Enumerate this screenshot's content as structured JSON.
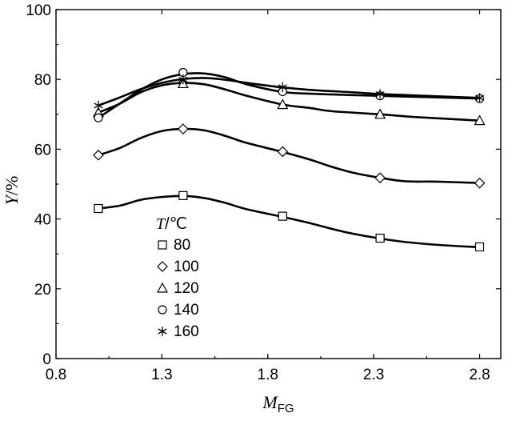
{
  "chart_data": {
    "type": "line",
    "xlabel": {
      "main": "M",
      "sub": "FG"
    },
    "ylabel": {
      "main": "Y",
      "suffix": "/%"
    },
    "xlim": [
      0.8,
      2.9
    ],
    "ylim": [
      0,
      100
    ],
    "x_ticks": [
      "0.8",
      "1.3",
      "1.8",
      "2.3",
      "2.8"
    ],
    "y_ticks": [
      "0",
      "20",
      "40",
      "60",
      "80",
      "100"
    ],
    "legend": {
      "title_main": "T",
      "title_suffix": "/℃",
      "placement": "lower-left"
    },
    "x": [
      1.0,
      1.4,
      1.87,
      2.33,
      2.8
    ],
    "series": [
      {
        "name": "80",
        "marker": "square",
        "values": [
          43,
          46.7,
          40.8,
          34.5,
          32.0
        ],
        "curve": [
          [
            1.0,
            43
          ],
          [
            1.1,
            43.8
          ],
          [
            1.2,
            45.5
          ],
          [
            1.3,
            46.3
          ],
          [
            1.4,
            46.6
          ],
          [
            1.5,
            46
          ],
          [
            1.6,
            44.6
          ],
          [
            1.7,
            42.8
          ],
          [
            1.87,
            40.6
          ],
          [
            2.0,
            38.8
          ],
          [
            2.1,
            37.2
          ],
          [
            2.2,
            35.8
          ],
          [
            2.33,
            34.4
          ],
          [
            2.45,
            33.4
          ],
          [
            2.6,
            32.6
          ],
          [
            2.8,
            31.9
          ]
        ]
      },
      {
        "name": "100",
        "marker": "diamond",
        "values": [
          58.3,
          65.8,
          59.3,
          51.8,
          50.3
        ],
        "curve": [
          [
            1.0,
            58.3
          ],
          [
            1.1,
            60.3
          ],
          [
            1.2,
            63.2
          ],
          [
            1.3,
            65.2
          ],
          [
            1.4,
            65.8
          ],
          [
            1.5,
            65.4
          ],
          [
            1.6,
            63.8
          ],
          [
            1.7,
            61.8
          ],
          [
            1.87,
            59.2
          ],
          [
            2.0,
            57
          ],
          [
            2.1,
            55
          ],
          [
            2.2,
            53.3
          ],
          [
            2.33,
            51.8
          ],
          [
            2.45,
            50.8
          ],
          [
            2.6,
            50.7
          ],
          [
            2.8,
            50.3
          ]
        ]
      },
      {
        "name": "120",
        "marker": "triangle",
        "values": [
          70.5,
          78.8,
          72.8,
          70.0,
          68.2
        ],
        "curve": [
          [
            1.0,
            70.5
          ],
          [
            1.1,
            73
          ],
          [
            1.2,
            76.3
          ],
          [
            1.3,
            78.3
          ],
          [
            1.4,
            79
          ],
          [
            1.5,
            78.6
          ],
          [
            1.6,
            77.1
          ],
          [
            1.7,
            75.3
          ],
          [
            1.87,
            72.8
          ],
          [
            2.0,
            71.8
          ],
          [
            2.1,
            70.9
          ],
          [
            2.33,
            70
          ],
          [
            2.5,
            69.2
          ],
          [
            2.8,
            68.2
          ]
        ]
      },
      {
        "name": "140",
        "marker": "circle",
        "values": [
          69.0,
          82.0,
          76.5,
          75.3,
          74.5
        ],
        "curve": [
          [
            1.0,
            69
          ],
          [
            1.1,
            73
          ],
          [
            1.2,
            77
          ],
          [
            1.3,
            80
          ],
          [
            1.4,
            81.5
          ],
          [
            1.5,
            81.7
          ],
          [
            1.6,
            80.6
          ],
          [
            1.7,
            78.6
          ],
          [
            1.87,
            76.4
          ],
          [
            2.0,
            75.9
          ],
          [
            2.2,
            75.5
          ],
          [
            2.33,
            75.3
          ],
          [
            2.5,
            75
          ],
          [
            2.8,
            74.5
          ]
        ]
      },
      {
        "name": "160",
        "marker": "star",
        "values": [
          72.5,
          80.0,
          77.8,
          75.8,
          74.7
        ],
        "curve": [
          [
            1.0,
            72.5
          ],
          [
            1.1,
            74.8
          ],
          [
            1.2,
            77.2
          ],
          [
            1.3,
            79
          ],
          [
            1.4,
            80.1
          ],
          [
            1.5,
            80.4
          ],
          [
            1.6,
            79.9
          ],
          [
            1.7,
            79
          ],
          [
            1.87,
            77.7
          ],
          [
            2.0,
            77
          ],
          [
            2.2,
            76.3
          ],
          [
            2.33,
            75.8
          ],
          [
            2.5,
            75.4
          ],
          [
            2.8,
            74.7
          ]
        ]
      }
    ]
  }
}
